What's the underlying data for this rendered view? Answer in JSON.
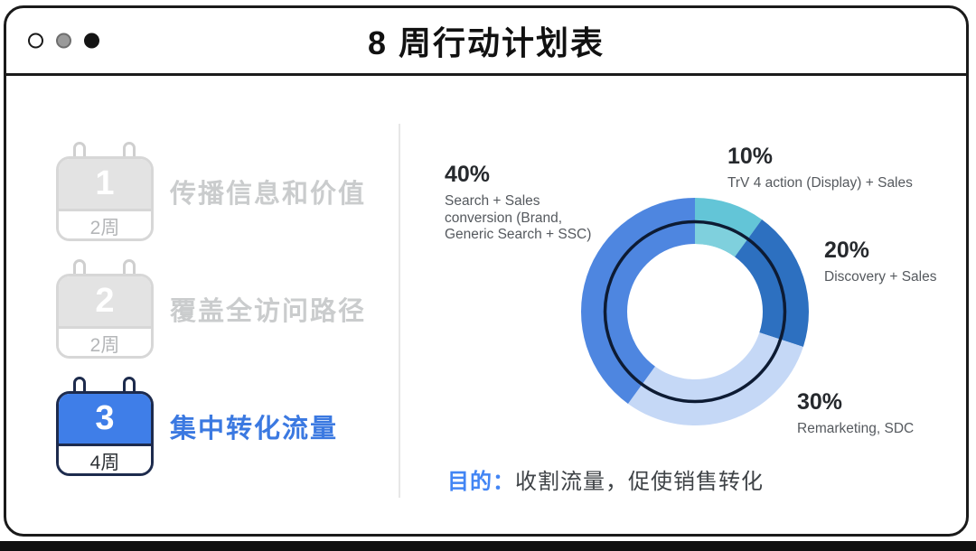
{
  "window": {
    "title": "8 周行动计划表"
  },
  "sidebar": {
    "items": [
      {
        "number": "1",
        "duration": "2周",
        "label": "传播信息和价值",
        "active": false
      },
      {
        "number": "2",
        "duration": "2周",
        "label": "覆盖全访问路径",
        "active": false
      },
      {
        "number": "3",
        "duration": "4周",
        "label": "集中转化流量",
        "active": true
      }
    ]
  },
  "chart_data": {
    "type": "pie",
    "donut": true,
    "start_angle_deg": -90,
    "direction": "clockwise",
    "segments": [
      {
        "name": "TrV 4 action (Display) + Sales",
        "value": 10,
        "color": "#63c5d7",
        "inner_color": "#7fd0dd"
      },
      {
        "name": "Discovery + Sales",
        "value": 20,
        "color": "#2d70c0"
      },
      {
        "name": "Remarketing, SDC",
        "value": 30,
        "color": "#c5d8f6"
      },
      {
        "name": "Search + Sales conversion (Brand, Generic Search + SSC)",
        "value": 40,
        "color": "#4e86e0"
      }
    ],
    "annotation_ring_color": "#0d1b33",
    "callouts": [
      {
        "pct": "40%",
        "lines": [
          "Search + Sales",
          "conversion (Brand,",
          "Generic Search + SSC)"
        ]
      },
      {
        "pct": "10%",
        "lines": [
          "TrV 4 action (Display) + Sales"
        ]
      },
      {
        "pct": "20%",
        "lines": [
          "Discovery + Sales"
        ]
      },
      {
        "pct": "30%",
        "lines": [
          "Remarketing, SDC"
        ]
      }
    ]
  },
  "purpose": {
    "prefix": "目的：",
    "text": "收割流量，促使销售转化"
  },
  "colors": {
    "accent_blue": "#4285f4",
    "active_calendar_blue": "#3f7ee8",
    "active_border_navy": "#1d2b4d",
    "inactive_gray": "#cacccd",
    "annotation_ring": "#0d1b33"
  }
}
